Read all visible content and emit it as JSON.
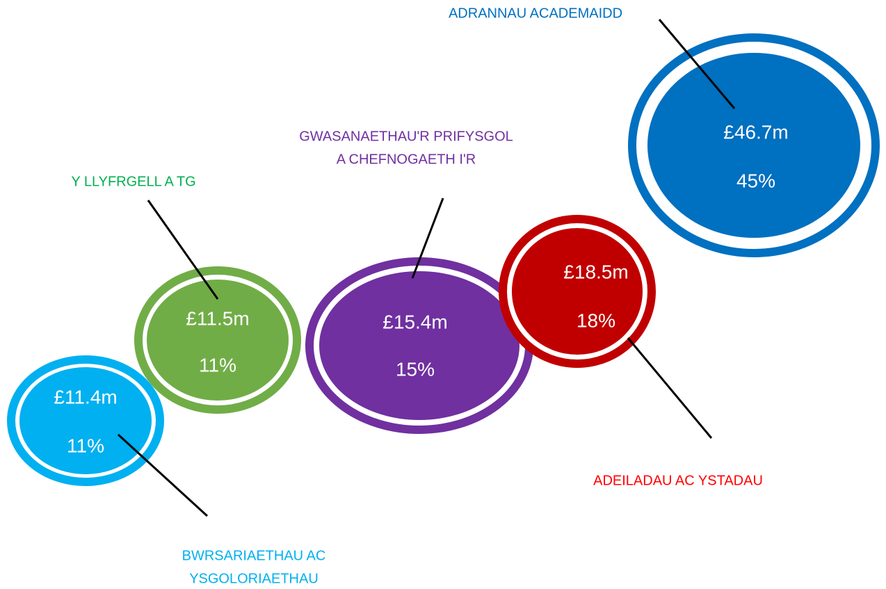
{
  "nodes": [
    {
      "label": [
        "BWRSARIAETHAU AC",
        "YSGOLORIAETHAU"
      ],
      "amount": "£11.4m",
      "percent": "11%"
    },
    {
      "label": [
        "Y LLYFRGELL A TG"
      ],
      "amount": "£11.5m",
      "percent": "11%"
    },
    {
      "label": [
        "GWASANAETHAU'R PRIFYSGOL",
        "A CHEFNOGAETH I'R"
      ],
      "amount": "£15.4m",
      "percent": "15%"
    },
    {
      "label": [
        "ADEILADAU AC YSTADAU"
      ],
      "amount": "£18.5m",
      "percent": "18%"
    },
    {
      "label": [
        "ADRANNAU ACADEMAIDD"
      ],
      "amount": "£46.7m",
      "percent": "45%"
    }
  ]
}
